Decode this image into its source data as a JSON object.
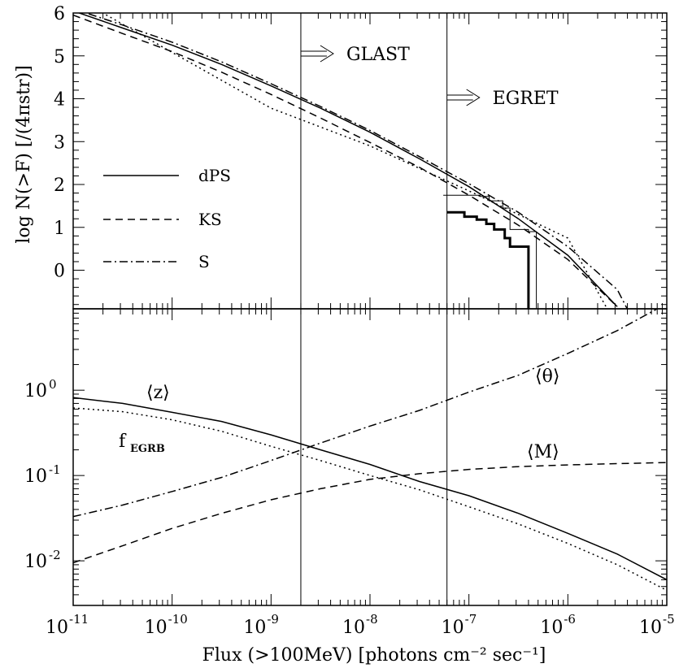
{
  "chart_data": [
    {
      "type": "line",
      "panel": "top",
      "ylabel": "log N(>F) [/(4πstr)]",
      "x_scale": "log",
      "xlim": [
        1e-11,
        1e-05
      ],
      "ylim": [
        -0.9,
        6
      ],
      "y_ticks": [
        "6",
        "5",
        "4",
        "3",
        "2",
        "1",
        "0"
      ],
      "legend": {
        "placement": "left",
        "entries": [
          "dPS",
          "KS",
          "S"
        ]
      },
      "series": [
        {
          "name": "dPS",
          "style": "solid",
          "x": [
            1e-11,
            3.16e-11,
            1e-10,
            3.16e-10,
            1e-09,
            3.16e-09,
            1e-08,
            3.16e-08,
            1e-07,
            3.16e-07,
            1e-06,
            3.16e-06
          ],
          "y": [
            6.05,
            5.65,
            5.25,
            4.8,
            4.3,
            3.78,
            3.22,
            2.6,
            1.95,
            1.2,
            0.35,
            -0.85
          ]
        },
        {
          "name": "KS",
          "style": "dashed",
          "x": [
            1e-11,
            3.16e-11,
            1e-10,
            3.16e-10,
            1e-09,
            3.16e-09,
            1e-08,
            3.16e-08,
            1e-07,
            3.16e-07,
            1e-06,
            3.16e-06
          ],
          "y": [
            5.95,
            5.52,
            5.1,
            4.62,
            4.1,
            3.55,
            2.98,
            2.4,
            1.75,
            1.05,
            0.25,
            -0.85
          ]
        },
        {
          "name": "S",
          "style": "dashdot",
          "x": [
            1e-11,
            3.16e-11,
            1e-10,
            3.16e-10,
            1e-09,
            3.16e-09,
            1e-08,
            3.16e-08,
            1e-07,
            3.16e-07,
            1e-06,
            3.16e-06,
            3.98e-06
          ],
          "y": [
            6.1,
            5.72,
            5.32,
            4.86,
            4.35,
            3.82,
            3.26,
            2.65,
            2.02,
            1.35,
            0.55,
            -0.45,
            -0.9
          ]
        },
        {
          "style": "dotted",
          "x": [
            1e-11,
            2e-11,
            1e-10,
            1e-09,
            1e-08,
            1e-07,
            1e-06,
            2.5e-06
          ],
          "y": [
            6.45,
            6.0,
            5.08,
            3.78,
            2.9,
            1.85,
            0.75,
            -0.9
          ]
        }
      ],
      "histograms": [
        {
          "style": "step-thin",
          "x": [
            5.5e-08,
            1.3e-07,
            1.6e-07,
            2.2e-07,
            2.6e-07,
            3.2e-07,
            4e-07,
            4.8e-07
          ],
          "y": [
            1.75,
            1.72,
            1.62,
            1.45,
            0.95,
            0.95,
            0.9,
            -0.9
          ]
        },
        {
          "style": "step-thick",
          "x": [
            6e-08,
            9e-08,
            1.2e-07,
            1.5e-07,
            1.8e-07,
            2.3e-07,
            2.6e-07,
            4e-07
          ],
          "y": [
            1.35,
            1.25,
            1.18,
            1.08,
            0.95,
            0.75,
            0.55,
            -0.9
          ]
        }
      ]
    },
    {
      "type": "line",
      "panel": "bottom",
      "xlabel": "Flux (>100MeV) [photons cm⁻² sec⁻¹]",
      "x_scale": "log",
      "y_scale": "log",
      "xlim": [
        1e-11,
        1e-05
      ],
      "ylim": [
        0.003,
        9
      ],
      "x_ticks": [
        {
          "base": "10",
          "exp": "-11"
        },
        {
          "base": "10",
          "exp": "-10"
        },
        {
          "base": "10",
          "exp": "-9"
        },
        {
          "base": "10",
          "exp": "-8"
        },
        {
          "base": "10",
          "exp": "-7"
        },
        {
          "base": "10",
          "exp": "-6"
        },
        {
          "base": "10",
          "exp": "-5"
        }
      ],
      "y_ticks": [
        {
          "base": "10",
          "exp": "0"
        },
        {
          "base": "10",
          "exp": "-1"
        },
        {
          "base": "10",
          "exp": "-2"
        }
      ],
      "series": [
        {
          "name": "⟨z⟩",
          "style": "solid",
          "x": [
            1e-11,
            3.16e-11,
            1e-10,
            3.16e-10,
            1e-09,
            3.16e-09,
            1e-08,
            3.16e-08,
            1e-07,
            3.16e-07,
            1e-06,
            3.16e-06,
            1e-05
          ],
          "y": [
            0.82,
            0.7,
            0.55,
            0.43,
            0.3,
            0.2,
            0.135,
            0.085,
            0.058,
            0.036,
            0.021,
            0.012,
            0.006
          ]
        },
        {
          "name": "f",
          "style": "dotted",
          "x": [
            1e-11,
            3.16e-11,
            1e-10,
            3.16e-10,
            1e-09,
            3.16e-09,
            1e-08,
            3.16e-08,
            1e-07,
            3.16e-07,
            1e-06,
            3.16e-06,
            1e-05
          ],
          "y": [
            0.62,
            0.56,
            0.45,
            0.33,
            0.22,
            0.15,
            0.1,
            0.068,
            0.043,
            0.027,
            0.016,
            0.009,
            0.0045
          ]
        },
        {
          "name": "⟨θ⟩",
          "style": "dashdot",
          "x": [
            1e-11,
            3.16e-11,
            1e-10,
            3.16e-10,
            1e-09,
            3.16e-09,
            1e-08,
            3.16e-08,
            1e-07,
            3.16e-07,
            1e-06,
            3.16e-06,
            8e-06
          ],
          "y": [
            0.033,
            0.045,
            0.065,
            0.095,
            0.15,
            0.24,
            0.38,
            0.58,
            0.95,
            1.5,
            2.7,
            5.0,
            9.0
          ]
        },
        {
          "name": "⟨M⟩",
          "style": "dashed",
          "x": [
            1e-11,
            3.16e-11,
            1e-10,
            3.16e-10,
            1e-09,
            3.16e-09,
            1e-08,
            3.16e-08,
            1e-07,
            3.16e-07,
            1e-06,
            3.16e-06,
            1e-05
          ],
          "y": [
            0.0095,
            0.015,
            0.024,
            0.036,
            0.052,
            0.07,
            0.09,
            0.105,
            0.118,
            0.127,
            0.133,
            0.138,
            0.142
          ]
        }
      ],
      "curve_labels": {
        "z": "⟨z⟩",
        "theta": "⟨θ⟩",
        "M": "⟨M⟩",
        "f_main": "f",
        "f_sub": "EGRB"
      }
    }
  ],
  "annotations": {
    "thresholds": [
      {
        "label": "GLAST",
        "x": 2e-09
      },
      {
        "label": "EGRET",
        "x": 6e-08
      }
    ]
  }
}
